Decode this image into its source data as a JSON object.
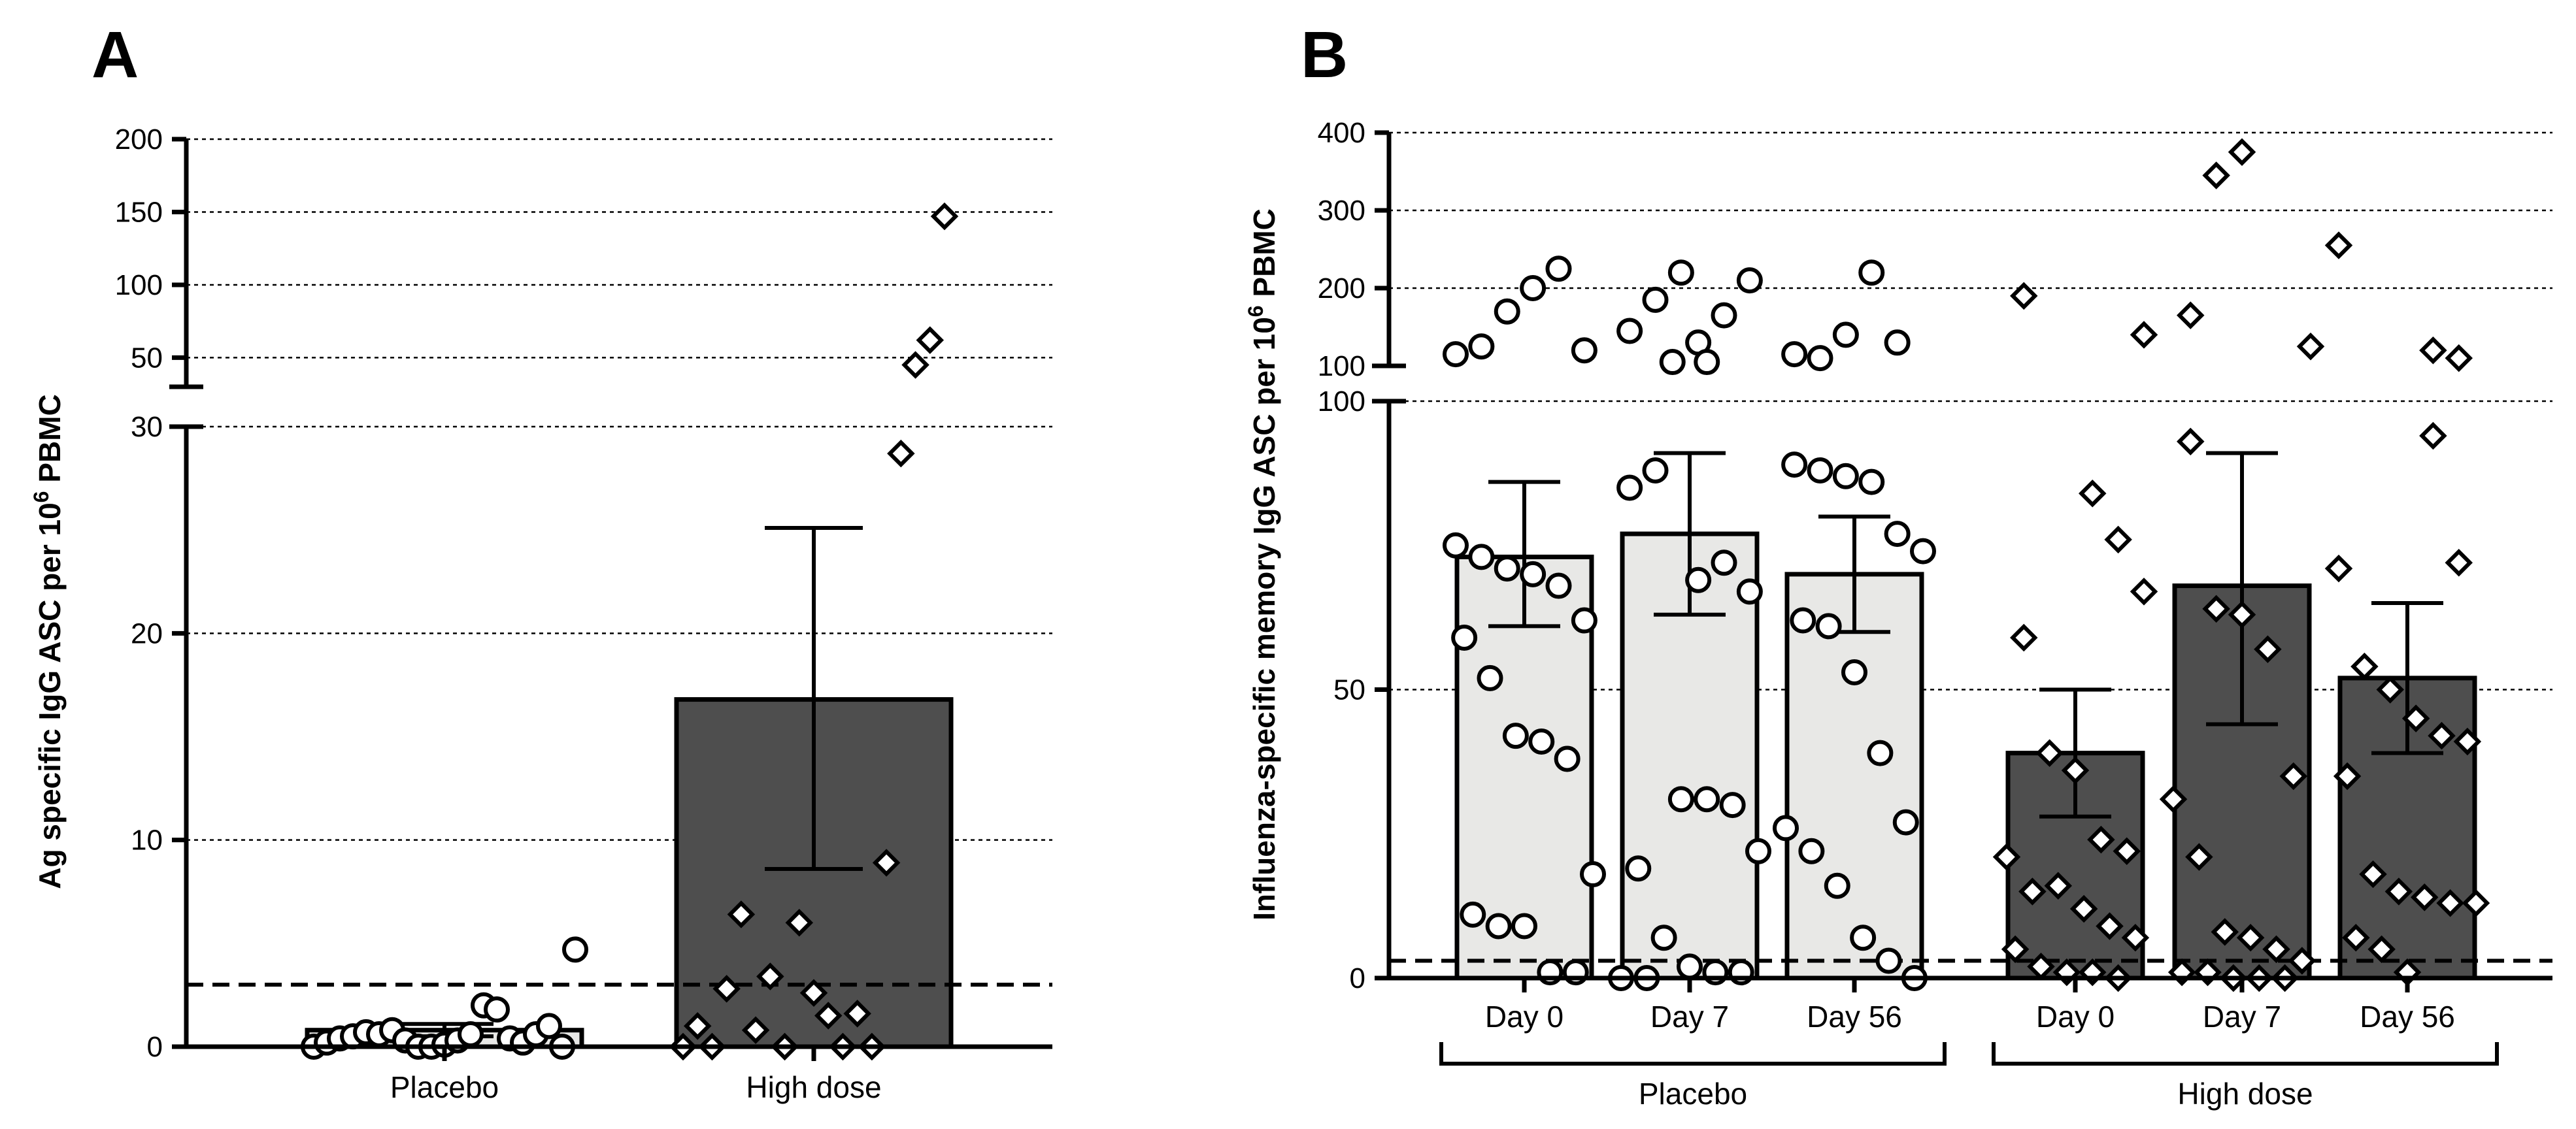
{
  "chart_data": [
    {
      "panel": "A",
      "type": "bar",
      "ylabel_main": "Ag specific IgG ASC per 10",
      "ylabel_sup": "6",
      "ylabel_end": " PBMC",
      "y_axis_break": true,
      "ylim_lower": [
        0,
        30
      ],
      "ylim_upper": [
        30,
        200
      ],
      "yticks_lower": [
        "0",
        "10",
        "20",
        "30"
      ],
      "yticks_upper": [
        "50",
        "100",
        "150",
        "200"
      ],
      "threshold": 3,
      "categories": [
        "Placebo",
        "High dose"
      ],
      "bars": [
        {
          "label": "Placebo",
          "mean": 0.8,
          "err_low": 0.5,
          "err_high": 1.1,
          "fill": "#e8e8e6",
          "marker": "circle",
          "points": [
            0,
            0.2,
            0.4,
            0.5,
            0.7,
            0.6,
            0.8,
            0.3,
            0,
            0,
            0.1,
            0.3,
            0.6,
            2.0,
            1.8,
            0.4,
            0.2,
            0.6,
            1.0,
            0,
            4.7
          ]
        },
        {
          "label": "High dose",
          "mean": 16.8,
          "err_low": 8.6,
          "err_high": 25.1,
          "fill": "#4e4e4e",
          "marker": "diamond",
          "points": [
            0,
            1.0,
            0,
            2.8,
            6.4,
            0.8,
            3.4,
            0,
            6.0,
            2.6,
            1.5,
            0,
            1.6,
            0,
            8.9,
            28.7,
            45,
            62,
            147
          ]
        }
      ]
    },
    {
      "panel": "B",
      "type": "bar",
      "ylabel_main": "Influenza-specific memory IgG ASC per 10",
      "ylabel_sup": "6",
      "ylabel_end": " PBMC",
      "y_axis_break": true,
      "ylim_lower": [
        0,
        100
      ],
      "ylim_upper": [
        100,
        400
      ],
      "yticks_lower": [
        "0",
        "50",
        "100"
      ],
      "yticks_upper": [
        "100",
        "200",
        "300",
        "400"
      ],
      "threshold": 3,
      "categories": [
        "Day 0",
        "Day 7",
        "Day 56",
        "Day 0",
        "Day 7",
        "Day 56"
      ],
      "groups": [
        {
          "label": "Placebo"
        },
        {
          "label": "High dose"
        }
      ],
      "bars": [
        {
          "group": "Placebo",
          "label": "Day 0",
          "mean": 73,
          "err_low": 61,
          "err_high": 86,
          "fill": "#e8e8e6",
          "marker": "circle",
          "points": [
            75,
            73,
            71,
            70,
            68,
            62,
            59,
            52,
            42,
            41,
            38,
            18,
            11,
            9,
            9,
            1,
            1,
            115,
            125,
            170,
            200,
            225,
            120
          ]
        },
        {
          "group": "Placebo",
          "label": "Day 7",
          "mean": 77,
          "err_low": 63,
          "err_high": 91,
          "fill": "#e8e8e6",
          "marker": "circle",
          "points": [
            69,
            72,
            67,
            85,
            88,
            31,
            31,
            30,
            22,
            19,
            7,
            2,
            1,
            1,
            0,
            0,
            105,
            130,
            165,
            210,
            145,
            185,
            220,
            105
          ]
        },
        {
          "group": "Placebo",
          "label": "Day 56",
          "mean": 70,
          "err_low": 60,
          "err_high": 80,
          "fill": "#e8e8e6",
          "marker": "circle",
          "points": [
            89,
            88,
            87,
            86,
            77,
            74,
            62,
            61,
            53,
            39,
            27,
            26,
            22,
            16,
            7,
            3,
            0,
            115,
            110,
            140,
            220,
            130
          ]
        },
        {
          "group": "High dose",
          "label": "Day 0",
          "mean": 39,
          "err_low": 28,
          "err_high": 50,
          "fill": "#4e4e4e",
          "marker": "diamond",
          "points": [
            84,
            76,
            67,
            59,
            39,
            36,
            24,
            22,
            21,
            15,
            16,
            12,
            9,
            7,
            5,
            2,
            1,
            1,
            0,
            140,
            190
          ]
        },
        {
          "group": "High dose",
          "label": "Day 7",
          "mean": 68,
          "err_low": 44,
          "err_high": 91,
          "fill": "#4e4e4e",
          "marker": "diamond",
          "points": [
            93,
            64,
            63,
            57,
            35,
            31,
            21,
            8,
            7,
            5,
            3,
            1,
            1,
            0,
            0,
            0,
            125,
            165,
            345,
            375
          ]
        },
        {
          "group": "High dose",
          "label": "Day 56",
          "mean": 52,
          "err_low": 39,
          "err_high": 65,
          "fill": "#4e4e4e",
          "marker": "diamond",
          "points": [
            94,
            72,
            71,
            54,
            50,
            45,
            42,
            41,
            35,
            18,
            15,
            14,
            13,
            13,
            7,
            5,
            1,
            120,
            110,
            255
          ]
        }
      ]
    }
  ]
}
